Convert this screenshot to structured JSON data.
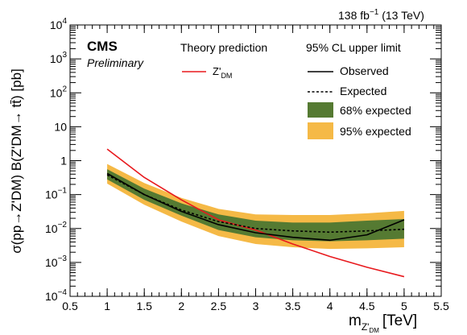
{
  "chart_data": {
    "type": "line",
    "title": "",
    "header_right": {
      "lumi": "138 fb",
      "lumi_exp": "−1",
      "energy": " (13 TeV)"
    },
    "cms_label": "CMS",
    "cms_sublabel": "Preliminary",
    "xlabel": {
      "main": "m",
      "sub": "Z'",
      "subsub": "DM",
      "unit": "[TeV]"
    },
    "ylabel": {
      "text": "σ(pp→Z'DM) B(Z'DM→ tt̄) [pb]"
    },
    "xlim": [
      0.5,
      5.5
    ],
    "ylim": [
      0.0001,
      10000
    ],
    "yscale": "log",
    "x_ticks": [
      "0.5",
      "1",
      "1.5",
      "2",
      "2.5",
      "3",
      "3.5",
      "4",
      "4.5",
      "5",
      "5.5"
    ],
    "y_ticks": [
      {
        "base": "10",
        "exp": "−4",
        "value": 0.0001
      },
      {
        "base": "10",
        "exp": "−3",
        "value": 0.001
      },
      {
        "base": "10",
        "exp": "−2",
        "value": 0.01
      },
      {
        "base": "10",
        "exp": "−1",
        "value": 0.1
      },
      {
        "base": "1",
        "exp": "",
        "value": 1
      },
      {
        "base": "10",
        "exp": "",
        "value": 10
      },
      {
        "base": "10",
        "exp": "2",
        "value": 100
      },
      {
        "base": "10",
        "exp": "3",
        "value": 1000
      },
      {
        "base": "10",
        "exp": "4",
        "value": 10000
      }
    ],
    "legend_theory": {
      "header": "Theory prediction",
      "entry_main": "Z'",
      "entry_sub": "DM"
    },
    "legend_limit": {
      "header": "95% CL upper limit",
      "observed": "Observed",
      "expected": "Expected",
      "band68": "68% expected",
      "band95": "95% expected"
    },
    "colors": {
      "theory": "#e8191d",
      "band68": "#557a32",
      "band95": "#f5b946",
      "observed": "#000000",
      "expected": "#000000"
    },
    "x": [
      1.0,
      1.5,
      2.0,
      2.5,
      3.0,
      3.5,
      4.0,
      4.5,
      5.0
    ],
    "series": [
      {
        "name": "Z'DM",
        "role": "theory",
        "values": [
          2.2,
          0.32,
          0.07,
          0.018,
          0.009,
          0.0035,
          0.0015,
          0.00072,
          0.00038
        ]
      },
      {
        "name": "Observed",
        "role": "observed",
        "values": [
          0.42,
          0.1,
          0.032,
          0.013,
          0.0075,
          0.0055,
          0.0045,
          0.0065,
          0.018
        ]
      },
      {
        "name": "Expected",
        "role": "expected",
        "values": [
          0.38,
          0.1,
          0.035,
          0.016,
          0.01,
          0.0085,
          0.0078,
          0.0085,
          0.0095
        ]
      }
    ],
    "bands": [
      {
        "name": "95% expected",
        "low": [
          0.21,
          0.05,
          0.016,
          0.006,
          0.0035,
          0.0028,
          0.0025,
          0.0026,
          0.0028
        ],
        "high": [
          0.8,
          0.22,
          0.08,
          0.038,
          0.026,
          0.025,
          0.025,
          0.028,
          0.033
        ]
      },
      {
        "name": "68% expected",
        "low": [
          0.28,
          0.07,
          0.024,
          0.009,
          0.0055,
          0.0045,
          0.0042,
          0.0045,
          0.005
        ],
        "high": [
          0.56,
          0.15,
          0.055,
          0.026,
          0.017,
          0.015,
          0.015,
          0.017,
          0.019
        ]
      }
    ]
  }
}
